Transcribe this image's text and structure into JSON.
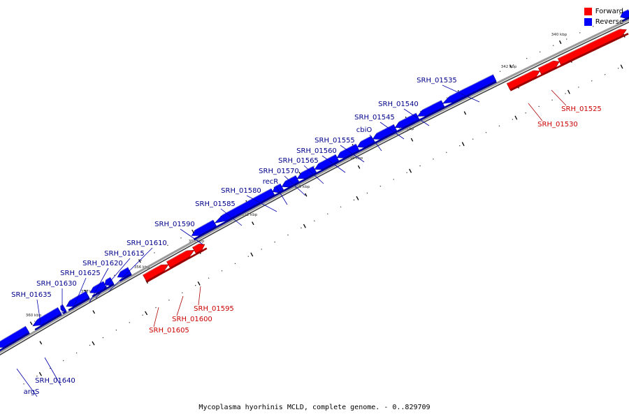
{
  "legend": {
    "forward_label": "Forward",
    "reverse_label": "Reverse",
    "forward_color": "#ff0000",
    "reverse_color": "#0000ff"
  },
  "caption": "Mycoplasma hyorhinis MCLD, complete genome. - 0..829709",
  "ticks": [
    "340 kbp",
    "342 kbp",
    "344 kbp",
    "346 kbp",
    "348 kbp",
    "350 kbp",
    "352 kbp",
    "354 kbp",
    "356 kbp",
    "358 kbp",
    "360 kbp"
  ],
  "genes": {
    "reverse": [
      "SRH_01535",
      "SRH_01540",
      "SRH_01545",
      "cbiO",
      "SRH_01555",
      "SRH_01560",
      "SRH_01565",
      "SRH_01570",
      "recR",
      "SRH_01580",
      "SRH_01585",
      "SRH_01590",
      "SRH_01610",
      "SRH_01615",
      "SRH_01620",
      "SRH_01625",
      "SRH_01630",
      "SRH_01635",
      "SRH_01640",
      "argS"
    ],
    "forward": [
      "SRH_01525",
      "SRH_01530",
      "SRH_01595",
      "SRH_01600",
      "SRH_01605"
    ]
  },
  "colors": {
    "forward": "#ff0000",
    "reverse": "#0000ff",
    "axis": "#777777"
  }
}
